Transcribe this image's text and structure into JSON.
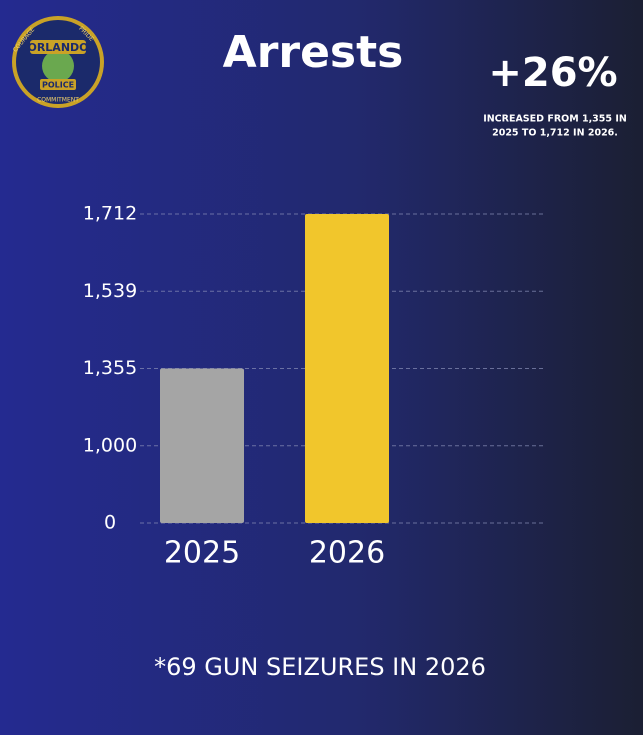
{
  "logo": {
    "name": "ORLANDO",
    "sub": "POLICE",
    "left": "COURAGE",
    "top": "PRIDE",
    "bottom": "COMMITMENT"
  },
  "chart_data": {
    "type": "bar",
    "title": "Arrests",
    "headline": "+26%",
    "headline_note": [
      "INCREASED FROM 1,355 IN",
      "2025 TO 1,712 IN 2026."
    ],
    "categories": [
      "2025",
      "2026"
    ],
    "values": [
      1355,
      1712
    ],
    "colors": [
      "#a5a5a5",
      "#f1c62c"
    ],
    "ylim": [
      0,
      1712
    ],
    "yticks": [
      0,
      {
        "value": 1000,
        "label": "1,000"
      },
      {
        "value": 1355,
        "label": "1,355"
      },
      {
        "value": 1539,
        "label": "1,539"
      },
      {
        "value": 1712,
        "label": "1,712"
      }
    ],
    "grid": true,
    "footnote": "*69 GUN SEIZURES IN 2026"
  }
}
